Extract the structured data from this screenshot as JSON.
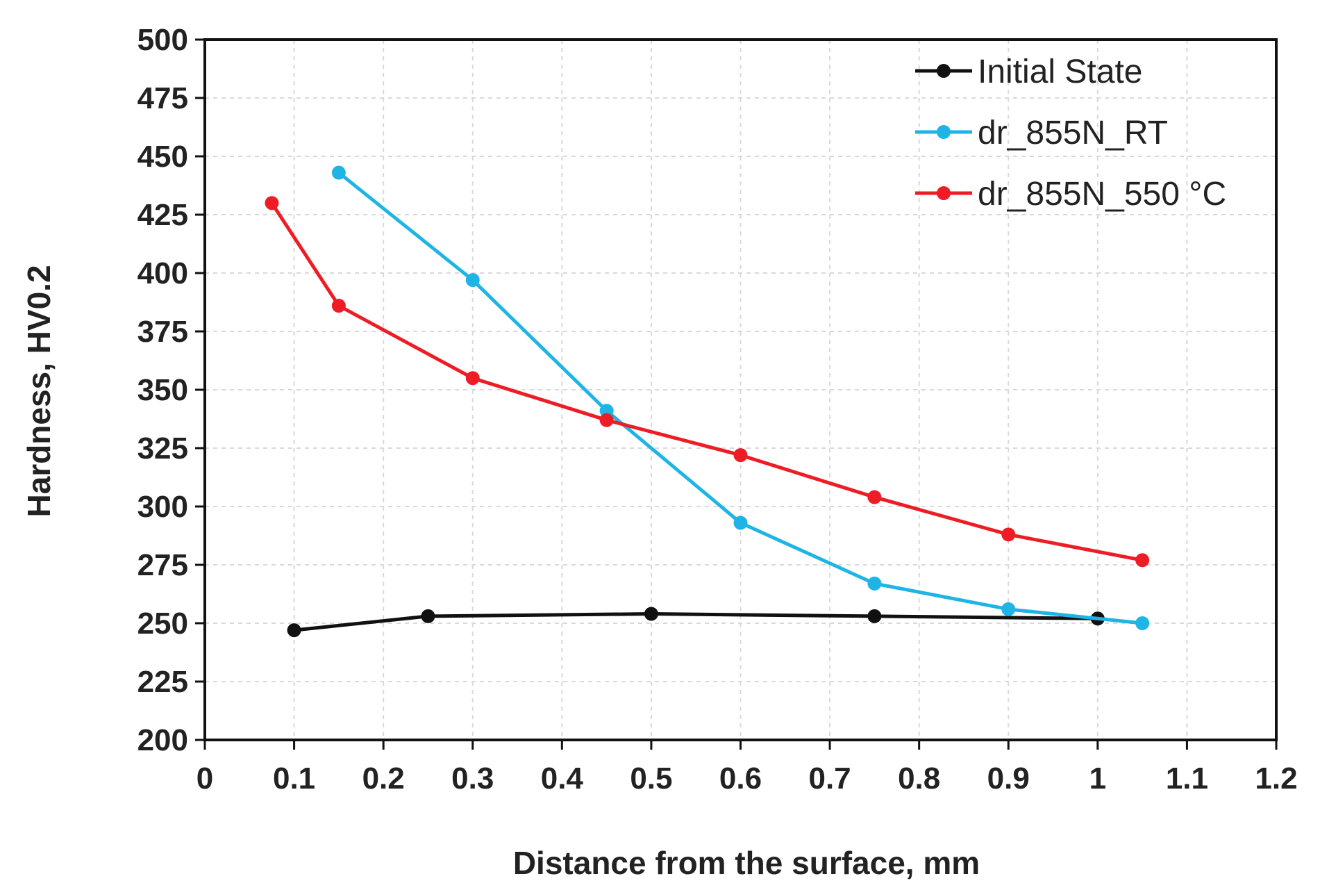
{
  "chart_data": {
    "type": "line",
    "title": "",
    "xlabel": "Distance from the surface, mm",
    "ylabel": "Hardness, HV0.2",
    "xlim": [
      0,
      1.2
    ],
    "ylim": [
      200,
      500
    ],
    "x_ticks": [
      0,
      0.1,
      0.2,
      0.3,
      0.4,
      0.5,
      0.6,
      0.7,
      0.8,
      0.9,
      1,
      1.1,
      1.2
    ],
    "x_tick_labels": [
      "0",
      "0.1",
      "0.2",
      "0.3",
      "0.4",
      "0.5",
      "0.6",
      "0.7",
      "0.8",
      "0.9",
      "1",
      "1.1",
      "1.2"
    ],
    "y_ticks": [
      200,
      225,
      250,
      275,
      300,
      325,
      350,
      375,
      400,
      425,
      450,
      475,
      500
    ],
    "y_tick_labels": [
      "200",
      "225",
      "250",
      "275",
      "300",
      "325",
      "350",
      "375",
      "400",
      "425",
      "450",
      "475",
      "500"
    ],
    "grid": true,
    "legend_position": "top-right",
    "series": [
      {
        "name": "Initial State",
        "color": "#111111",
        "x": [
          0.1,
          0.25,
          0.5,
          0.75,
          1.0
        ],
        "y": [
          247,
          253,
          254,
          253,
          252
        ]
      },
      {
        "name": "dr_855N_RT",
        "color": "#1fb4e6",
        "x": [
          0.15,
          0.3,
          0.45,
          0.6,
          0.75,
          0.9,
          1.05
        ],
        "y": [
          443,
          397,
          341,
          293,
          267,
          256,
          250
        ]
      },
      {
        "name": "dr_855N_550 °C",
        "color": "#ee1c25",
        "x": [
          0.075,
          0.15,
          0.3,
          0.45,
          0.6,
          0.75,
          0.9,
          1.05
        ],
        "y": [
          430,
          386,
          355,
          337,
          322,
          304,
          288,
          277
        ]
      }
    ]
  }
}
